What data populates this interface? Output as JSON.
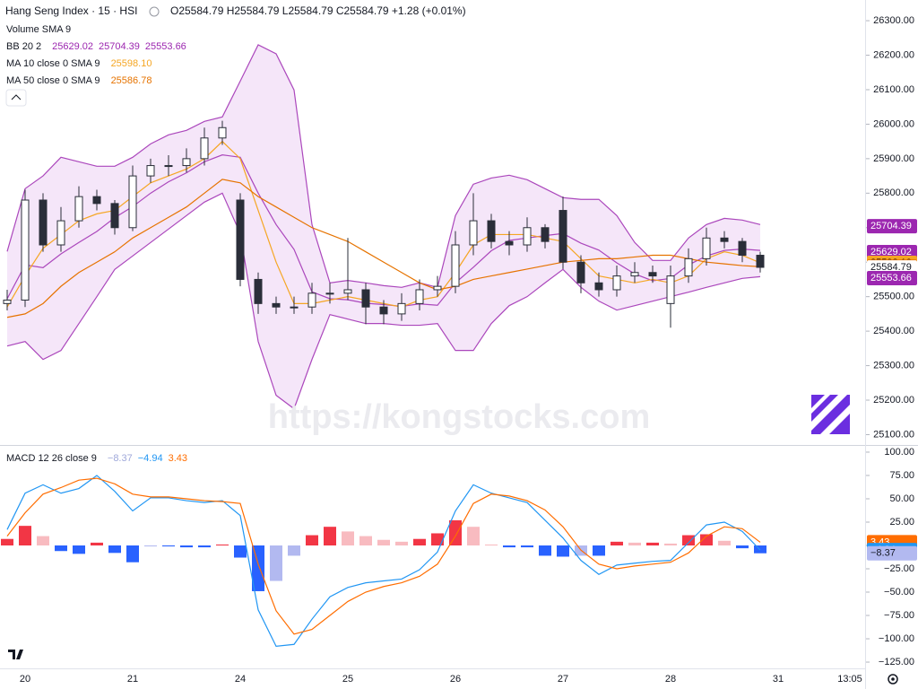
{
  "chart_data": [
    {
      "type": "candlestick",
      "title": "Hang Seng Index · 15 · HSI",
      "ohlc_readout": "O25584.79 H25584.79 L25584.79 C25584.79 +1.28 (+0.01%)",
      "legend": [
        {
          "label": "Volume SMA 9"
        },
        {
          "label": "BB 20 2",
          "readout": [
            "25629.02",
            "25704.39",
            "25553.66"
          ],
          "color": "#9c27b0"
        },
        {
          "label": "MA 10 close 0 SMA 9",
          "readout": [
            "25598.10"
          ],
          "color": "#f5a623"
        },
        {
          "label": "MA 50 close 0 SMA 9",
          "readout": [
            "25586.78"
          ],
          "color": "#e67300"
        }
      ],
      "watermark": "https://kongstocks.com",
      "ylim": [
        25070,
        26360
      ],
      "yticks": [
        {
          "value": 25100,
          "label": "25100.00"
        },
        {
          "value": 25200,
          "label": "25200.00"
        },
        {
          "value": 25300,
          "label": "25300.00"
        },
        {
          "value": 25400,
          "label": "25400.00"
        },
        {
          "value": 25500,
          "label": "25500.00"
        },
        {
          "value": 25600,
          "label": "25600.00"
        },
        {
          "value": 25700,
          "label": "25700.00"
        },
        {
          "value": 25800,
          "label": "25800.00"
        },
        {
          "value": 25900,
          "label": "25900.00"
        },
        {
          "value": 26000,
          "label": "26000.00"
        },
        {
          "value": 26100,
          "label": "26100.00"
        },
        {
          "value": 26200,
          "label": "26200.00"
        },
        {
          "value": 26300,
          "label": "26300.00"
        }
      ],
      "open": [
        25480,
        25490,
        25780,
        25650,
        25720,
        25790,
        25770,
        25700,
        25850,
        25880,
        25880,
        25900,
        25960,
        25780,
        25550,
        25480,
        25470,
        25470,
        25510,
        25510,
        25520,
        25470,
        25450,
        25480,
        25520,
        25530,
        25650,
        25720,
        25660,
        25650,
        25700,
        25750,
        25600,
        25540,
        25520,
        25560,
        25570,
        25480,
        25560,
        25610,
        25670,
        25660,
        25620,
        null,
        null,
        null,
        null,
        null
      ],
      "high": [
        25520,
        25810,
        25800,
        25760,
        25820,
        25810,
        25780,
        25880,
        25900,
        25910,
        25930,
        25990,
        26010,
        25800,
        25570,
        25500,
        25500,
        25540,
        25540,
        25670,
        25540,
        25490,
        25510,
        25550,
        25560,
        25690,
        25800,
        25740,
        25690,
        25730,
        25710,
        25790,
        25620,
        25570,
        25590,
        25600,
        25590,
        25590,
        25640,
        25700,
        25690,
        25670,
        25630,
        null,
        null,
        null,
        null,
        null
      ],
      "low": [
        25460,
        25470,
        25630,
        25630,
        25700,
        25750,
        25680,
        25690,
        25830,
        25850,
        25860,
        25880,
        25940,
        25530,
        25450,
        25450,
        25450,
        25450,
        25480,
        25490,
        25420,
        25420,
        25430,
        25460,
        25500,
        25510,
        25620,
        25640,
        25620,
        25630,
        25640,
        25580,
        25510,
        25500,
        25500,
        25540,
        25540,
        25410,
        25540,
        25590,
        25640,
        25600,
        25570,
        null,
        null,
        null,
        null,
        null
      ],
      "close": [
        25490,
        25780,
        25650,
        25720,
        25790,
        25770,
        25700,
        25850,
        25880,
        25880,
        25900,
        25960,
        25990,
        25550,
        25480,
        25470,
        25470,
        25510,
        25510,
        25520,
        25470,
        25450,
        25480,
        25520,
        25530,
        25650,
        25720,
        25660,
        25650,
        25700,
        25660,
        25600,
        25540,
        25520,
        25560,
        25570,
        25560,
        25560,
        25610,
        25670,
        25660,
        25620,
        25585,
        null,
        null,
        null,
        null,
        null
      ],
      "candle_colors": {
        "up": "#ffffff",
        "down": "#2a2e39",
        "wick": "#2a2e39"
      },
      "bb": {
        "color": "#ab47bc",
        "fill": "#f3e0f7",
        "upper": [
          25631,
          25813,
          25850,
          25904,
          25891,
          25878,
          25878,
          25904,
          25943,
          25969,
          25982,
          26008,
          26021,
          26125,
          26230,
          26204,
          26099,
          25709,
          25540,
          25547,
          25540,
          25532,
          25527,
          25540,
          25527,
          25735,
          25826,
          25844,
          25852,
          25839,
          25813,
          25787,
          25782,
          25782,
          25735,
          25657,
          25605,
          25605,
          25670,
          25709,
          25727,
          25722,
          25709,
          null,
          null,
          null,
          null,
          null
        ],
        "basis": [
          25494,
          25592,
          25584,
          25624,
          25657,
          25689,
          25729,
          25761,
          25800,
          25833,
          25859,
          25891,
          25911,
          25904,
          25800,
          25709,
          25637,
          25514,
          25494,
          25491,
          25481,
          25477,
          25472,
          25479,
          25475,
          25540,
          25585,
          25633,
          25663,
          25670,
          25677,
          25683,
          25655,
          25635,
          25598,
          25566,
          25546,
          25553,
          25592,
          25618,
          25634,
          25638,
          25634,
          null,
          null,
          null,
          null,
          null
        ],
        "lower": [
          25357,
          25370,
          25318,
          25344,
          25422,
          25500,
          25579,
          25618,
          25657,
          25696,
          25735,
          25774,
          25800,
          25683,
          25370,
          25214,
          25175,
          25318,
          25448,
          25435,
          25422,
          25422,
          25417,
          25417,
          25422,
          25344,
          25344,
          25422,
          25474,
          25500,
          25540,
          25579,
          25527,
          25487,
          25461,
          25474,
          25487,
          25500,
          25513,
          25527,
          25540,
          25553,
          25558,
          null,
          null,
          null,
          null,
          null
        ]
      },
      "ma": [
        {
          "color": "#f5a623",
          "values": [
            25470,
            25560,
            25640,
            25680,
            25720,
            25740,
            25750,
            25790,
            25830,
            25850,
            25870,
            25900,
            25950,
            25900,
            25750,
            25600,
            25480,
            25480,
            25490,
            25500,
            25490,
            25480,
            25470,
            25490,
            25500,
            25570,
            25650,
            25680,
            25680,
            25680,
            25670,
            25660,
            25610,
            25560,
            25550,
            25540,
            25550,
            25540,
            25560,
            25610,
            25630,
            25620,
            25598,
            null,
            null,
            null,
            null,
            null
          ]
        },
        {
          "color": "#e67300",
          "values": [
            25440,
            25450,
            25480,
            25530,
            25570,
            25600,
            25630,
            25670,
            25700,
            25730,
            25760,
            25800,
            25840,
            25830,
            25790,
            25760,
            25730,
            25700,
            25680,
            25660,
            25630,
            25600,
            25570,
            25540,
            25520,
            25530,
            25550,
            25560,
            25570,
            25580,
            25590,
            25600,
            25605,
            25610,
            25610,
            25615,
            25620,
            25620,
            25610,
            25600,
            25595,
            25590,
            25587,
            null,
            null,
            null,
            null,
            null
          ]
        }
      ],
      "price_tags": [
        {
          "value": 25704.39,
          "label": "25704.39",
          "color": "#9c27b0",
          "text_color": "#ffffff"
        },
        {
          "value": 25629.02,
          "label": "25629.02",
          "color": "#9c27b0",
          "text_color": "#ffffff"
        },
        {
          "value": 25598.1,
          "label": "25598.10",
          "color": "#f5a623",
          "text_color": "#000000"
        },
        {
          "value": 25586.78,
          "label": "25586.78",
          "color": "#e67300",
          "text_color": "#ffffff"
        },
        {
          "value": 25584.79,
          "label": "25584.79",
          "color": "#ffffff",
          "text_color": "#131722"
        },
        {
          "value": 25553.66,
          "label": "25553.66",
          "color": "#9c27b0",
          "text_color": "#ffffff"
        }
      ]
    },
    {
      "type": "macd",
      "title": "MACD 12 26 close 9",
      "readout": [
        {
          "label": "−8.37",
          "color": "#9fa8da"
        },
        {
          "label": "−4.94",
          "color": "#2196f3"
        },
        {
          "label": "3.43",
          "color": "#ff6d00"
        }
      ],
      "categories": [
        null,
        "20",
        null,
        null,
        null,
        null,
        null,
        "21",
        null,
        null,
        null,
        null,
        null,
        "24",
        null,
        null,
        null,
        null,
        null,
        "25",
        null,
        null,
        null,
        null,
        null,
        "26",
        null,
        null,
        null,
        null,
        null,
        "27",
        null,
        null,
        null,
        null,
        null,
        "28",
        null,
        null,
        null,
        null,
        null,
        "31",
        null,
        null,
        null,
        "13:05"
      ],
      "ylim": [
        -131.7,
        106.7
      ],
      "yticks": [
        {
          "value": 100,
          "label": "100.00"
        },
        {
          "value": 75,
          "label": "75.00"
        },
        {
          "value": 50,
          "label": "50.00"
        },
        {
          "value": 25,
          "label": "25.00"
        },
        {
          "value": 0,
          "label": "0.00"
        },
        {
          "value": -25,
          "label": "−25.00"
        },
        {
          "value": -50,
          "label": "−50.00"
        },
        {
          "value": -75,
          "label": "−75.00"
        },
        {
          "value": -100,
          "label": "−100.00"
        },
        {
          "value": -125,
          "label": "−125.00"
        }
      ],
      "histogram": {
        "colors": {
          "pos_rising": "#f23645",
          "pos_falling": "#f8bbc0",
          "neg_falling": "#2962ff",
          "neg_rising": "#b2b9f0"
        },
        "values": [
          7,
          21,
          10,
          -6,
          -9,
          3,
          -8,
          -18,
          -1,
          -1,
          -2,
          -2,
          1,
          -13,
          -49,
          -38,
          -11,
          11,
          20,
          15,
          10,
          6,
          4,
          7,
          13,
          27,
          20,
          1,
          -2,
          -2,
          -11,
          -12,
          -11,
          -11,
          4,
          3,
          3,
          2,
          11,
          12,
          5,
          -3,
          -8.37,
          null,
          null,
          null,
          null,
          null
        ]
      },
      "macd": {
        "color": "#2196f3",
        "values": [
          17,
          56,
          65,
          56,
          61,
          75,
          58,
          37,
          51,
          51,
          48,
          46,
          48,
          32,
          -69,
          -108,
          -106,
          -79,
          -55,
          -45,
          -40,
          -38,
          -36,
          -26,
          -7,
          37,
          65,
          56,
          51,
          46,
          27,
          8,
          -16,
          -31,
          -21,
          -19,
          -17,
          -16,
          3,
          22,
          25,
          15,
          -4.94,
          null,
          null,
          null,
          null,
          null
        ]
      },
      "signal": {
        "color": "#ff6d00",
        "values": [
          10,
          35,
          55,
          62,
          70,
          72,
          66,
          55,
          52,
          52,
          50,
          48,
          47,
          45,
          -20,
          -70,
          -95,
          -90,
          -75,
          -60,
          -50,
          -44,
          -40,
          -33,
          -20,
          10,
          45,
          55,
          53,
          48,
          38,
          20,
          -5,
          -20,
          -25,
          -22,
          -20,
          -18,
          -8,
          10,
          20,
          18,
          3.43,
          null,
          null,
          null,
          null,
          null
        ]
      },
      "value_tags": [
        {
          "value": 3.43,
          "label": "3.43",
          "color": "#ff6d00",
          "text_color": "#ffffff"
        },
        {
          "value": -4.94,
          "label": "−4.94",
          "color": "#2196f3",
          "text_color": "#ffffff"
        },
        {
          "value": -8.37,
          "label": "−8.37",
          "color": "#b2b9f0",
          "text_color": "#131722"
        }
      ]
    }
  ]
}
